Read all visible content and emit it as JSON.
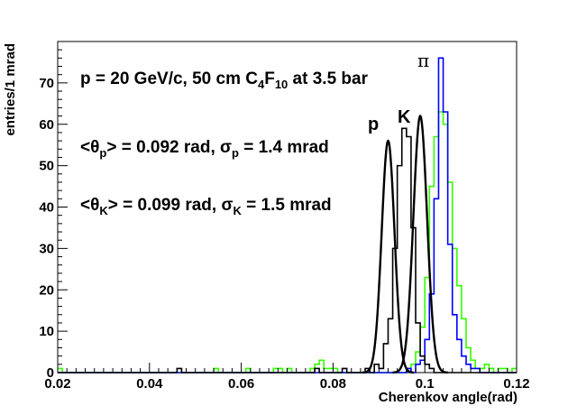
{
  "chart_data": {
    "type": "line",
    "xlabel": "Cherenkov angle(rad)",
    "ylabel": "entries/1 mrad",
    "xlim": [
      0.02,
      0.12
    ],
    "ylim": [
      0,
      80
    ],
    "x_ticks": [
      "0.02",
      "0.04",
      "0.06",
      "0.08",
      "0.1",
      "0.12"
    ],
    "y_ticks": [
      "0",
      "10",
      "20",
      "30",
      "40",
      "50",
      "60",
      "70"
    ],
    "bin_width": 0.001,
    "annotations": {
      "line1": {
        "prefix": "p = 20 GeV/c, 50 cm C",
        "sub1": "4",
        "mid": "F",
        "sub2": "10",
        "suffix": " at 3.5 bar"
      },
      "line2": {
        "open": "<θ",
        "sub": "p",
        "close": "> = 0.092 rad, σ",
        "sub2": "p",
        "tail": " = 1.4 mrad"
      },
      "line3": {
        "open": "<θ",
        "sub": "K",
        "close": "> = 0.099 rad, σ",
        "sub2": "K",
        "tail": " = 1.5 mrad"
      }
    },
    "peak_labels": {
      "p": "p",
      "K": "K",
      "pi": "π"
    },
    "colors": {
      "p": "#000000",
      "K": "#33ff00",
      "pi": "#0000ff",
      "fit": "#000000"
    },
    "series": [
      {
        "key": "p",
        "start": 0.02,
        "counts": [
          0,
          0,
          0,
          0,
          0,
          0,
          0,
          0,
          0,
          0,
          0,
          0,
          0,
          0,
          0,
          0,
          0,
          0,
          0,
          0,
          0,
          0,
          0,
          0,
          0,
          0,
          1,
          0,
          0,
          0,
          0,
          0,
          0,
          0,
          0,
          0,
          0,
          0,
          0,
          0,
          0,
          0,
          0,
          0,
          0,
          0,
          0,
          0,
          0,
          0,
          0,
          0,
          0,
          0,
          0,
          0,
          1,
          0,
          0,
          0,
          0,
          0,
          1,
          0,
          0,
          0,
          0,
          1,
          0,
          2,
          1,
          7,
          13,
          30,
          50,
          59,
          57,
          35,
          12,
          4,
          2,
          1,
          0,
          0,
          0,
          0,
          0,
          0,
          0,
          0,
          0,
          0,
          0,
          0,
          0,
          0,
          0,
          0,
          0,
          0
        ]
      },
      {
        "key": "K",
        "start": 0.02,
        "counts": [
          1,
          0,
          0,
          0,
          0,
          0,
          0,
          0,
          0,
          0,
          0,
          0,
          0,
          0,
          0,
          0,
          0,
          0,
          0,
          0,
          0,
          0,
          0,
          0,
          0,
          0,
          0,
          0,
          0,
          0,
          0,
          0,
          0,
          0,
          1,
          0,
          0,
          0,
          0,
          0,
          0,
          1,
          0,
          0,
          0,
          0,
          0,
          1,
          1,
          0,
          1,
          0,
          0,
          0,
          0,
          1,
          2,
          3,
          1,
          1,
          1,
          0,
          0,
          0,
          0,
          0,
          0,
          0,
          0,
          0,
          0,
          0,
          0,
          0,
          0,
          0,
          1,
          2,
          5,
          11,
          23,
          45,
          57,
          63,
          60,
          46,
          30,
          21,
          13,
          6,
          3,
          1,
          1,
          2,
          1,
          0,
          1,
          1,
          0,
          1
        ]
      },
      {
        "key": "pi",
        "start": 0.02,
        "counts": [
          0,
          0,
          0,
          0,
          0,
          0,
          0,
          0,
          0,
          0,
          0,
          0,
          0,
          0,
          0,
          0,
          0,
          0,
          0,
          0,
          0,
          0,
          0,
          0,
          0,
          0,
          0,
          0,
          0,
          0,
          0,
          0,
          0,
          0,
          0,
          0,
          0,
          0,
          0,
          0,
          0,
          0,
          0,
          0,
          0,
          0,
          0,
          0,
          0,
          0,
          0,
          0,
          0,
          0,
          0,
          0,
          0,
          0,
          0,
          0,
          0,
          0,
          0,
          0,
          0,
          0,
          0,
          0,
          0,
          0,
          0,
          0,
          0,
          0,
          0,
          0,
          1,
          0,
          2,
          3,
          8,
          19,
          42,
          76,
          63,
          31,
          14,
          8,
          4,
          2,
          1,
          1,
          0,
          0,
          0,
          0,
          0,
          0,
          0,
          0
        ]
      }
    ],
    "fits": [
      {
        "key": "p",
        "mean": 0.092,
        "sigma": 0.0014,
        "amplitude": 56
      },
      {
        "key": "K",
        "mean": 0.099,
        "sigma": 0.0015,
        "amplitude": 62
      }
    ]
  }
}
